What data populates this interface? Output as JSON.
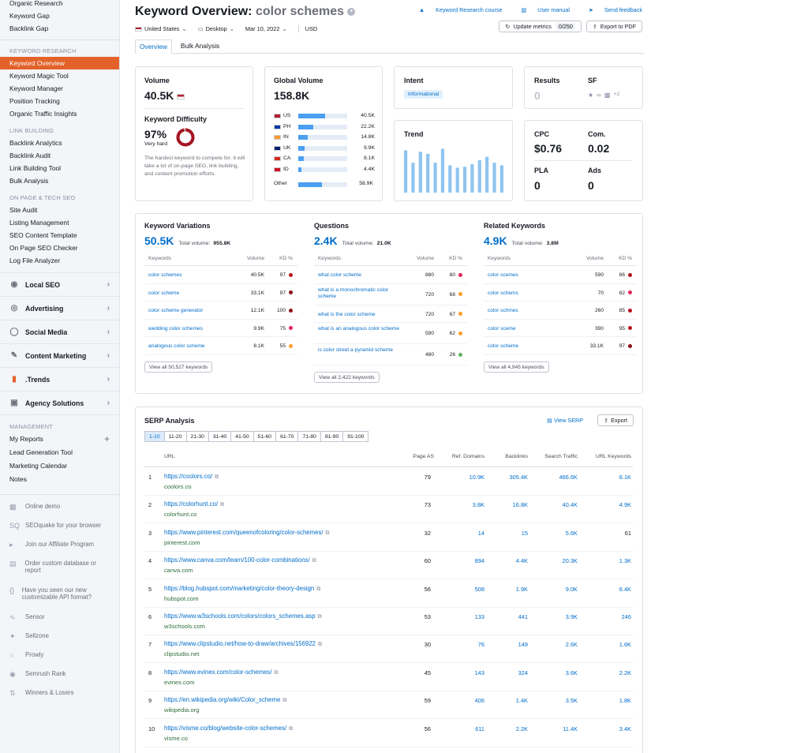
{
  "sidebar": {
    "top_items": [
      "Organic Research",
      "Keyword Gap",
      "Backlink Gap"
    ],
    "sections": [
      {
        "title": "Keyword Research",
        "items": [
          "Keyword Overview",
          "Keyword Magic Tool",
          "Keyword Manager",
          "Position Tracking",
          "Organic Traffic Insights"
        ]
      },
      {
        "title": "Link Building",
        "items": [
          "Backlink Analytics",
          "Backlink Audit",
          "Link Building Tool",
          "Bulk Analysis"
        ]
      },
      {
        "title": "On Page & Tech SEO",
        "items": [
          "Site Audit",
          "Listing Management",
          "SEO Content Template",
          "On Page SEO Checker",
          "Log File Analyzer"
        ]
      }
    ],
    "main_menus": [
      {
        "label": "Local SEO",
        "icon": "pin-icon"
      },
      {
        "label": "Advertising",
        "icon": "target-icon"
      },
      {
        "label": "Social Media",
        "icon": "social-icon"
      },
      {
        "label": "Content Marketing",
        "icon": "pencil-icon"
      },
      {
        "label": ".Trends",
        "icon": "bars-icon"
      },
      {
        "label": "Agency Solutions",
        "icon": "briefcase-icon"
      }
    ],
    "management_title": "Management",
    "management_items": [
      "My Reports",
      "Lead Generation Tool",
      "Marketing Calendar",
      "Notes"
    ],
    "utility_items": [
      "Online demo",
      "SEOquake for your browser",
      "Join our Affiliate Program",
      "Order custom database or report",
      "Have you seen our new customizable API format?",
      "Sensor",
      "Sellzone",
      "Prowly",
      "Semrush Rank",
      "Winners & Losers"
    ]
  },
  "header": {
    "title_prefix": "Keyword Overview:",
    "keyword": "color schemes",
    "country": "United States",
    "device": "Desktop",
    "date": "Mar 10, 2022",
    "currency": "USD",
    "links": [
      "Keyword Research course",
      "User manual",
      "Send feedback"
    ],
    "update_label": "Update metrics",
    "update_count": "0/250",
    "export_label": "Export to PDF"
  },
  "tabs": [
    "Overview",
    "Bulk Analysis"
  ],
  "volume": {
    "label": "Volume",
    "value": "40.5K",
    "kd_label": "Keyword Difficulty",
    "kd_value": "97%",
    "kd_text": "Very hard",
    "kd_desc": "The hardest keyword to compete for. It will take a lot of on-page SEO, link building, and content promotion efforts.",
    "kd_percent": 97
  },
  "global_volume": {
    "label": "Global Volume",
    "value": "158.8K",
    "rows": [
      {
        "code": "US",
        "value": "40.5K",
        "pct": 0.25
      },
      {
        "code": "PH",
        "value": "22.2K",
        "pct": 0.14
      },
      {
        "code": "IN",
        "value": "14.8K",
        "pct": 0.09
      },
      {
        "code": "UK",
        "value": "9.9K",
        "pct": 0.06
      },
      {
        "code": "CA",
        "value": "8.1K",
        "pct": 0.05
      },
      {
        "code": "ID",
        "value": "4.4K",
        "pct": 0.03
      }
    ],
    "other_label": "Other",
    "other_value": "58.9K",
    "other_pct": 0.37
  },
  "intent": {
    "label": "Intent",
    "badge": "Informational"
  },
  "trend": {
    "label": "Trend",
    "values": [
      0.85,
      0.6,
      0.82,
      0.78,
      0.6,
      0.88,
      0.55,
      0.5,
      0.52,
      0.57,
      0.65,
      0.72,
      0.6,
      0.55
    ]
  },
  "results": {
    "label": "Results",
    "value": "0",
    "sf_label": "SF",
    "sf_more": "+2"
  },
  "cpc": {
    "label": "CPC",
    "value": "$0.76",
    "com_label": "Com.",
    "com_value": "0.02",
    "pla_label": "PLA",
    "pla_value": "0",
    "ads_label": "Ads",
    "ads_value": "0"
  },
  "variations": {
    "title": "Keyword Variations",
    "count": "50.5K",
    "total_label": "Total volume:",
    "total": "955.8K",
    "headers": [
      "Keywords",
      "Volume",
      "KD %"
    ],
    "rows": [
      {
        "kw": "color schemes",
        "vol": "40.5K",
        "kd": "97",
        "color": "#b5121b"
      },
      {
        "kw": "color scheme",
        "vol": "33.1K",
        "kd": "97",
        "color": "#8b0d15"
      },
      {
        "kw": "color scheme generator",
        "vol": "12.1K",
        "kd": "100",
        "color": "#8b0d15"
      },
      {
        "kw": "wedding color schemes",
        "vol": "9.9K",
        "kd": "75",
        "color": "#e2245b"
      },
      {
        "kw": "analogous color scheme",
        "vol": "8.1K",
        "kd": "55",
        "color": "#ff9d2b"
      }
    ],
    "view_all": "View all 50,527 keywords"
  },
  "questions": {
    "title": "Questions",
    "count": "2.4K",
    "total_label": "Total volume:",
    "total": "21.0K",
    "headers": [
      "Keywords",
      "Volume",
      "KD %"
    ],
    "rows": [
      {
        "kw": "what color scheme",
        "vol": "880",
        "kd": "80",
        "color": "#e2245b"
      },
      {
        "kw": "what is a monochromatic color scheme",
        "vol": "720",
        "kd": "68",
        "color": "#ff9d2b"
      },
      {
        "kw": "what is the color scheme",
        "vol": "720",
        "kd": "67",
        "color": "#ff9d2b"
      },
      {
        "kw": "what is an analogous color scheme",
        "vol": "590",
        "kd": "62",
        "color": "#ff9d2b"
      },
      {
        "kw": "is color street a pyramid scheme",
        "vol": "480",
        "kd": "26",
        "color": "#5fb35f"
      }
    ],
    "view_all": "View all 2,422 keywords"
  },
  "related": {
    "title": "Related Keywords",
    "count": "4.9K",
    "total_label": "Total volume:",
    "total": "3.8M",
    "headers": [
      "Keywords",
      "Volume",
      "KD %"
    ],
    "rows": [
      {
        "kw": "color scemes",
        "vol": "590",
        "kd": "86",
        "color": "#b5121b"
      },
      {
        "kw": "color schems",
        "vol": "70",
        "kd": "82",
        "color": "#e2245b"
      },
      {
        "kw": "color schmes",
        "vol": "260",
        "kd": "85",
        "color": "#b5121b"
      },
      {
        "kw": "color sceme",
        "vol": "390",
        "kd": "95",
        "color": "#b5121b"
      },
      {
        "kw": "color scheme",
        "vol": "33.1K",
        "kd": "97",
        "color": "#8b0d15"
      }
    ],
    "view_all": "View all 4,945 keywords"
  },
  "serp": {
    "title": "SERP Analysis",
    "view_serp": "View SERP",
    "export": "Export",
    "pages": [
      "1-10",
      "11-20",
      "21-30",
      "31-40",
      "41-50",
      "51-60",
      "61-70",
      "71-80",
      "81-90",
      "91-100"
    ],
    "headers": [
      "URL",
      "Page AS",
      "Ref. Domains",
      "Backlinks",
      "Search Traffic",
      "URL Keywords"
    ],
    "rows": [
      {
        "n": "1",
        "url": "https://coolors.co/",
        "domain": "coolors.co",
        "as": "79",
        "ref": "10.9K",
        "bl": "305.4K",
        "st": "466.6K",
        "uk": "6.1K"
      },
      {
        "n": "2",
        "url": "https://colorhunt.co/",
        "domain": "colorhunt.co",
        "as": "73",
        "ref": "3.8K",
        "bl": "16.8K",
        "st": "40.4K",
        "uk": "4.9K"
      },
      {
        "n": "3",
        "url": "https://www.pinterest.com/queenofcoloring/color-schemes/",
        "domain": "pinterest.com",
        "as": "32",
        "ref": "14",
        "bl": "15",
        "st": "5.6K",
        "uk": "61"
      },
      {
        "n": "4",
        "url": "https://www.canva.com/learn/100-color-combinations/",
        "domain": "canva.com",
        "as": "60",
        "ref": "894",
        "bl": "4.4K",
        "st": "20.3K",
        "uk": "1.3K"
      },
      {
        "n": "5",
        "url": "https://blog.hubspot.com/marketing/color-theory-design",
        "domain": "hubspot.com",
        "as": "56",
        "ref": "508",
        "bl": "1.9K",
        "st": "9.0K",
        "uk": "6.4K"
      },
      {
        "n": "6",
        "url": "https://www.w3schools.com/colors/colors_schemes.asp",
        "domain": "w3schools.com",
        "as": "53",
        "ref": "133",
        "bl": "441",
        "st": "3.9K",
        "uk": "246"
      },
      {
        "n": "7",
        "url": "https://www.clipstudio.net/how-to-draw/archives/156922",
        "domain": "clipstudio.net",
        "as": "30",
        "ref": "76",
        "bl": "149",
        "st": "2.6K",
        "uk": "1.6K"
      },
      {
        "n": "8",
        "url": "https://www.evinex.com/color-schemes/",
        "domain": "evinex.com",
        "as": "45",
        "ref": "143",
        "bl": "324",
        "st": "3.6K",
        "uk": "2.2K"
      },
      {
        "n": "9",
        "url": "https://en.wikipedia.org/wiki/Color_scheme",
        "domain": "wikipedia.org",
        "as": "59",
        "ref": "406",
        "bl": "1.4K",
        "st": "3.5K",
        "uk": "1.8K"
      },
      {
        "n": "10",
        "url": "https://visme.co/blog/website-color-schemes/",
        "domain": "visme.co",
        "as": "56",
        "ref": "611",
        "bl": "2.2K",
        "st": "11.4K",
        "uk": "3.4K"
      }
    ]
  },
  "colors": {
    "accent": "#e2622a",
    "link": "#006dca",
    "bar": "#8fc4ef",
    "text": "#171a22"
  }
}
